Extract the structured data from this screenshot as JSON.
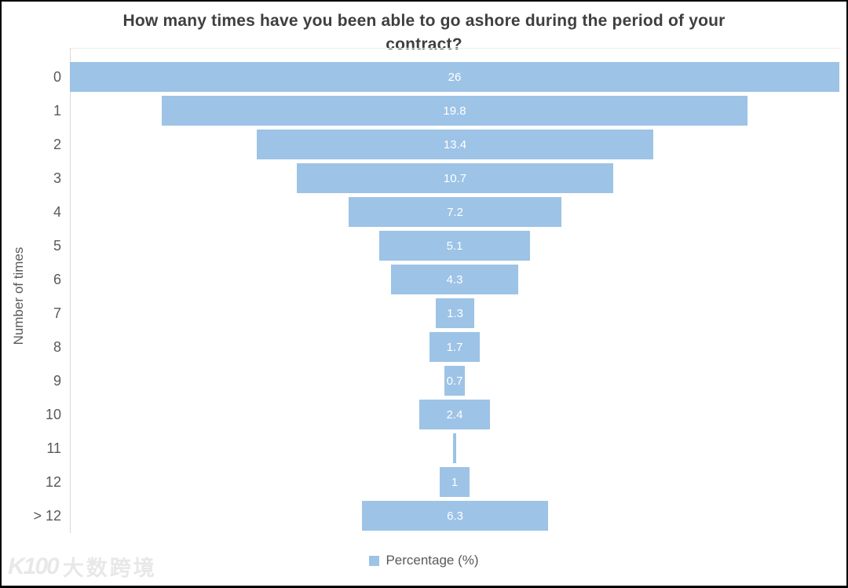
{
  "title": "How many times have you been able to go ashore during the period of your contract?",
  "y_axis_title": "Number of times",
  "legend": {
    "label": "Percentage (%)"
  },
  "watermark": {
    "logo": "K100",
    "text": "大数跨境"
  },
  "colors": {
    "bar": "#9DC3E6",
    "title_text": "#3F3F3F",
    "axis_text": "#595959",
    "value_text": "#FFFFFF",
    "axis_line": "#D9D9D9",
    "plot_top_line": "#ECECEC",
    "watermark": "#E8E8E8",
    "frame_border": "#000000"
  },
  "chart_data": {
    "type": "bar",
    "variant": "centered-funnel",
    "orientation": "horizontal",
    "title": "How many times have you been able to go ashore during the period of your contract?",
    "ylabel": "Number of times",
    "xlabel": "",
    "categories": [
      "0",
      "1",
      "2",
      "3",
      "4",
      "5",
      "6",
      "7",
      "8",
      "9",
      "10",
      "11",
      "12",
      "> 12"
    ],
    "series": [
      {
        "name": "Percentage (%)",
        "values": [
          26,
          19.8,
          13.4,
          10.7,
          7.2,
          5.1,
          4.3,
          1.3,
          1.7,
          0.7,
          2.4,
          0.1,
          1,
          6.3
        ]
      }
    ],
    "value_labels": [
      "26",
      "19.8",
      "13.4",
      "10.7",
      "7.2",
      "5.1",
      "4.3",
      "1.3",
      "1.7",
      "0.7",
      "2.4",
      "",
      "1",
      "6.3"
    ],
    "axis_max": 26,
    "grid": false,
    "legend_position": "bottom"
  }
}
